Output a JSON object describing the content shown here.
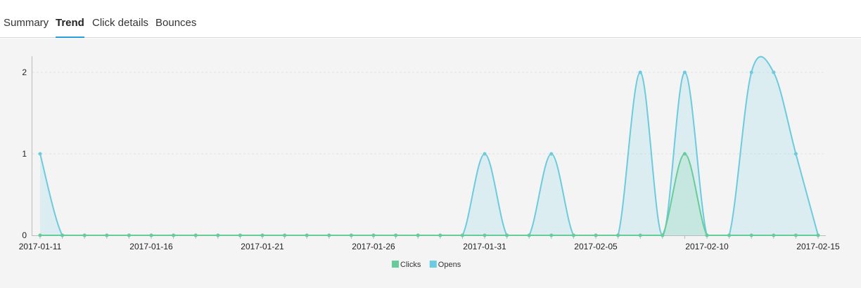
{
  "tabs": [
    {
      "label": "Summary"
    },
    {
      "label": "Trend"
    },
    {
      "label": "Click details"
    },
    {
      "label": "Bounces"
    }
  ],
  "active_tab": "Trend",
  "colors": {
    "clicks": "#66cc99",
    "opens": "#6ccbde",
    "tab_underline": "#2a9fd6"
  },
  "chart_data": {
    "type": "area",
    "x": [
      "2017-01-11",
      "2017-01-12",
      "2017-01-13",
      "2017-01-14",
      "2017-01-15",
      "2017-01-16",
      "2017-01-17",
      "2017-01-18",
      "2017-01-19",
      "2017-01-20",
      "2017-01-21",
      "2017-01-22",
      "2017-01-23",
      "2017-01-24",
      "2017-01-25",
      "2017-01-26",
      "2017-01-27",
      "2017-01-28",
      "2017-01-29",
      "2017-01-30",
      "2017-01-31",
      "2017-02-01",
      "2017-02-02",
      "2017-02-03",
      "2017-02-04",
      "2017-02-05",
      "2017-02-06",
      "2017-02-07",
      "2017-02-08",
      "2017-02-09",
      "2017-02-10",
      "2017-02-11",
      "2017-02-12",
      "2017-02-13",
      "2017-02-14",
      "2017-02-15"
    ],
    "x_tick_labels": [
      "2017-01-11",
      "2017-01-16",
      "2017-01-21",
      "2017-01-26",
      "2017-01-31",
      "2017-02-05",
      "2017-02-10",
      "2017-02-15"
    ],
    "y_ticks": [
      "0",
      "1",
      "2"
    ],
    "ylim": [
      0,
      2
    ],
    "series": [
      {
        "name": "Clicks",
        "values": [
          0,
          0,
          0,
          0,
          0,
          0,
          0,
          0,
          0,
          0,
          0,
          0,
          0,
          0,
          0,
          0,
          0,
          0,
          0,
          0,
          0,
          0,
          0,
          0,
          0,
          0,
          0,
          0,
          0,
          1,
          0,
          0,
          0,
          0,
          0,
          0
        ]
      },
      {
        "name": "Opens",
        "values": [
          1,
          0,
          0,
          0,
          0,
          0,
          0,
          0,
          0,
          0,
          0,
          0,
          0,
          0,
          0,
          0,
          0,
          0,
          0,
          0,
          1,
          0,
          0,
          1,
          0,
          0,
          0,
          2,
          0,
          2,
          0,
          0,
          2,
          2,
          1,
          0
        ]
      }
    ],
    "legend": [
      "Clicks",
      "Opens"
    ],
    "legend_position": "bottom",
    "grid": true
  }
}
